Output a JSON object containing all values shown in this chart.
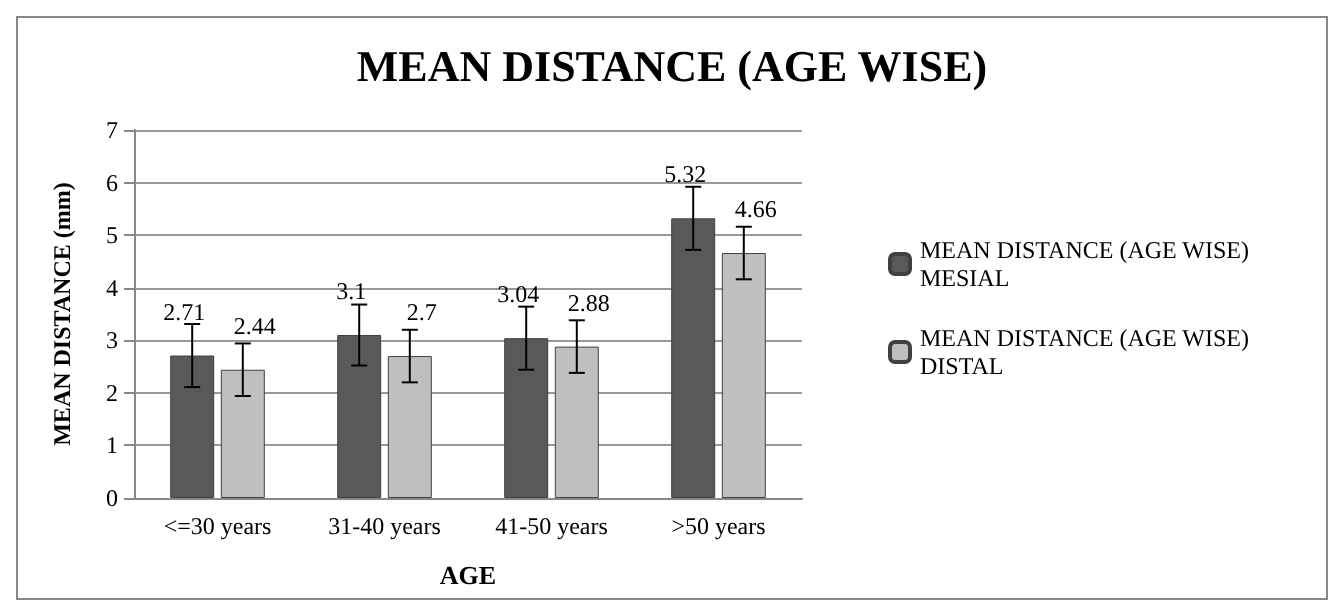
{
  "chart_data": {
    "type": "bar",
    "title": "MEAN DISTANCE (AGE WISE)",
    "xlabel": "AGE",
    "ylabel": "MEAN DISTANCE (mm)",
    "categories": [
      "<=30 years",
      "31-40 years",
      "41-50 years",
      ">50 years"
    ],
    "series": [
      {
        "name": "MEAN DISTANCE (AGE WISE) MESIAL",
        "color": "#595959",
        "values": [
          2.71,
          3.1,
          3.04,
          5.32
        ],
        "errors": [
          0.6,
          0.58,
          0.6,
          0.6
        ]
      },
      {
        "name": "MEAN DISTANCE (AGE WISE) DISTAL",
        "color": "#bfbfbf",
        "values": [
          2.44,
          2.7,
          2.88,
          4.66
        ],
        "errors": [
          0.5,
          0.5,
          0.5,
          0.5
        ]
      }
    ],
    "ylim": [
      0,
      7
    ],
    "yticks": [
      0,
      1,
      2,
      3,
      4,
      5,
      6,
      7
    ],
    "grid": "y",
    "legend": "right",
    "data_labels": true
  }
}
